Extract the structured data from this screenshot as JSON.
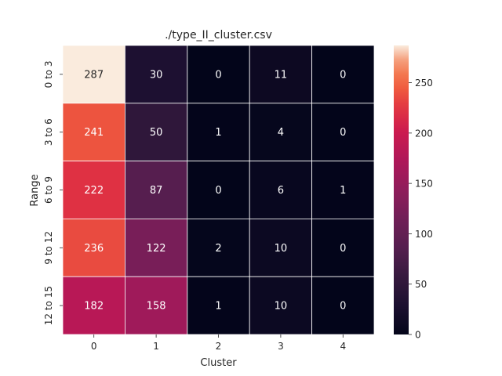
{
  "chart_data": {
    "type": "heatmap",
    "title": "./type_II_cluster.csv",
    "xlabel": "Cluster",
    "ylabel": "Range",
    "x_categories": [
      "0",
      "1",
      "2",
      "3",
      "4"
    ],
    "y_categories": [
      "0 to 3",
      "3 to 6",
      "6 to 9",
      "9 to 12",
      "12 to 15"
    ],
    "values": [
      [
        287,
        30,
        0,
        11,
        0
      ],
      [
        241,
        50,
        1,
        4,
        0
      ],
      [
        222,
        87,
        0,
        6,
        1
      ],
      [
        236,
        122,
        2,
        10,
        0
      ],
      [
        182,
        158,
        1,
        10,
        0
      ]
    ],
    "value_range": [
      0,
      287
    ],
    "colormap": "rocket",
    "colorbar": {
      "ticks": [
        0,
        50,
        100,
        150,
        200,
        250
      ],
      "tick_labels": [
        "0",
        "50",
        "100",
        "150",
        "200",
        "250"
      ]
    },
    "annotate": true,
    "cell_border_color": "#ffffff"
  }
}
